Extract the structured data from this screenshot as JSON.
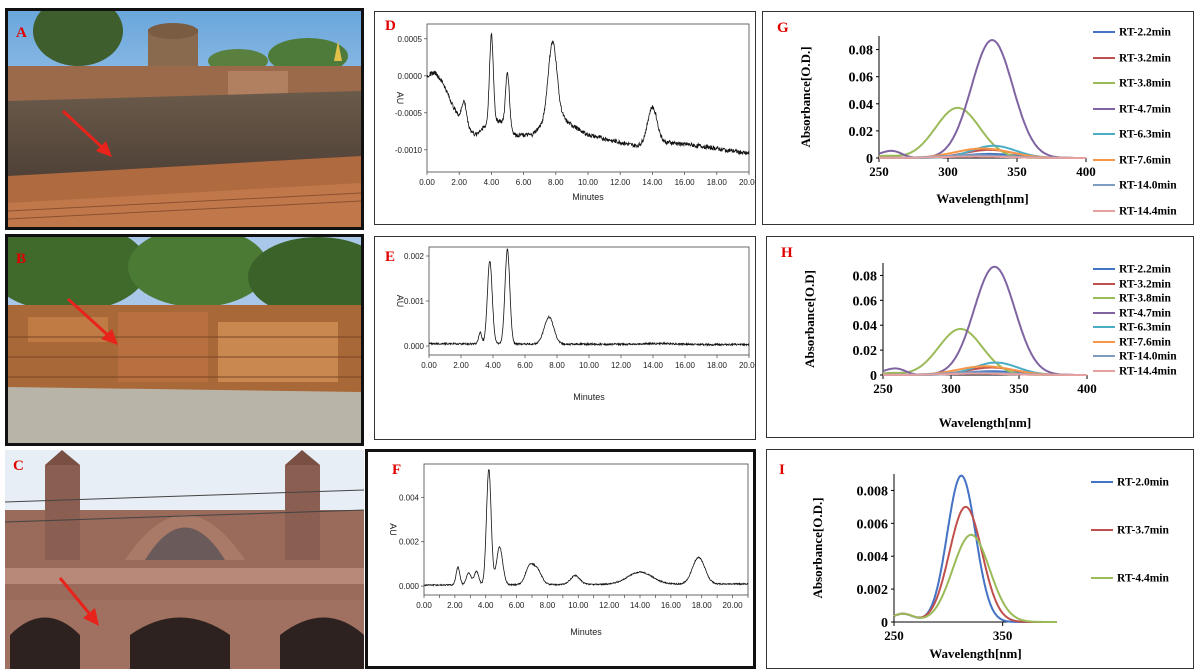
{
  "panels": {
    "A": {
      "label": "A"
    },
    "B": {
      "label": "B"
    },
    "C": {
      "label": "C"
    },
    "D": {
      "label": "D"
    },
    "E": {
      "label": "E"
    },
    "F": {
      "label": "F"
    },
    "G": {
      "label": "G"
    },
    "H": {
      "label": "H"
    },
    "I": {
      "label": "I"
    }
  },
  "colors": {
    "label_red": "#e00000",
    "arrow_red": "#e8231b"
  },
  "chart_data": [
    {
      "id": "D",
      "type": "line",
      "xlabel": "Minutes",
      "ylabel": "AU",
      "xlim": [
        0,
        20
      ],
      "ylim": [
        -0.0013,
        0.0007
      ],
      "xticks": [
        "0.00",
        "2.00",
        "4.00",
        "6.00",
        "8.00",
        "10.00",
        "12.00",
        "14.00",
        "16.00",
        "18.00",
        "20.00"
      ],
      "yticks": [
        "0.0005",
        "0.0000",
        "-0.0005",
        "-0.0010"
      ],
      "ytick_values": [
        0.0005,
        0.0,
        -0.0005,
        -0.001
      ],
      "baseline": [
        [
          0,
          0
        ],
        [
          0.5,
          5e-05
        ],
        [
          1,
          -0.0001
        ],
        [
          1.6,
          -0.0004
        ],
        [
          2.1,
          -0.0006
        ],
        [
          3,
          -0.0008
        ],
        [
          3.5,
          -0.0007
        ],
        [
          4.5,
          -0.0006
        ],
        [
          5.5,
          -0.0008
        ],
        [
          6.5,
          -0.0008
        ],
        [
          7,
          -0.0007
        ],
        [
          8.5,
          -0.0006
        ],
        [
          10,
          -0.0008
        ],
        [
          12,
          -0.0009
        ],
        [
          13,
          -0.00095
        ],
        [
          15,
          -0.0009
        ],
        [
          17,
          -0.00095
        ],
        [
          20,
          -0.00105
        ]
      ],
      "peaks": [
        [
          2.3,
          0.0003,
          0.15
        ],
        [
          4.0,
          0.0012,
          0.12
        ],
        [
          5.0,
          0.00075,
          0.12
        ],
        [
          7.8,
          0.0011,
          0.28
        ],
        [
          14.0,
          0.0005,
          0.3
        ]
      ],
      "noise": 3e-05
    },
    {
      "id": "E",
      "type": "line",
      "xlabel": "Minutes",
      "ylabel": "AU",
      "xlim": [
        0,
        20
      ],
      "ylim": [
        -0.0002,
        0.0022
      ],
      "xticks": [
        "0.00",
        "2.00",
        "4.00",
        "6.00",
        "8.00",
        "10.00",
        "12.00",
        "14.00",
        "16.00",
        "18.00",
        "20.00"
      ],
      "yticks": [
        "0.002",
        "0.001",
        "0.000"
      ],
      "ytick_values": [
        0.002,
        0.001,
        0.0
      ],
      "baseline": [
        [
          0,
          5e-05
        ],
        [
          20,
          3e-05
        ]
      ],
      "peaks": [
        [
          3.2,
          0.00025,
          0.1
        ],
        [
          3.8,
          0.00185,
          0.15
        ],
        [
          4.9,
          0.0021,
          0.15
        ],
        [
          7.5,
          0.0006,
          0.3
        ],
        [
          14.5,
          2e-05,
          1
        ]
      ],
      "noise": 2e-05
    },
    {
      "id": "F",
      "type": "line",
      "xlabel": "Minutes",
      "ylabel": "AU",
      "xlim": [
        0,
        21
      ],
      "ylim": [
        -0.0004,
        0.0055
      ],
      "xticks": [
        "0.00",
        "1.00",
        "2.00",
        "3.00",
        "4.00",
        "5.00",
        "6.00",
        "7.00",
        "8.00",
        "9.00",
        "10.00",
        "11.00",
        "12.00",
        "13.00",
        "14.00",
        "15.00",
        "16.00",
        "17.00",
        "18.00",
        "19.00",
        "20.00",
        "21.00"
      ],
      "xtick_labels_shown": [
        "0.00",
        "2.00",
        "4.00",
        "6.00",
        "8.00",
        "10.00",
        "12.00",
        "14.00",
        "16.00",
        "18.00",
        "20.00"
      ],
      "yticks": [
        "0.004",
        "0.002",
        "0.000"
      ],
      "ytick_values": [
        0.004,
        0.002,
        0.0
      ],
      "baseline": [
        [
          0,
          5e-05
        ],
        [
          21,
          0.0001
        ]
      ],
      "peaks": [
        [
          2.2,
          0.0008,
          0.12
        ],
        [
          2.9,
          0.00055,
          0.15
        ],
        [
          3.4,
          0.0006,
          0.15
        ],
        [
          4.2,
          0.0052,
          0.15
        ],
        [
          4.9,
          0.0017,
          0.2
        ],
        [
          6.8,
          0.0007,
          0.25
        ],
        [
          7.3,
          0.0007,
          0.3
        ],
        [
          9.8,
          0.0004,
          0.3
        ],
        [
          14.0,
          0.00055,
          0.8
        ],
        [
          17.8,
          0.0012,
          0.4
        ]
      ],
      "noise": 3e-05
    },
    {
      "id": "G",
      "type": "line",
      "xlabel": "Wavelength[nm]",
      "ylabel": "Absorbance[O.D.]",
      "xlim": [
        250,
        400
      ],
      "ylim": [
        0,
        0.09
      ],
      "xticks": [
        "250",
        "300",
        "350",
        "400"
      ],
      "yticks": [
        "0",
        "0.02",
        "0.04",
        "0.06",
        "0.08"
      ],
      "series": [
        {
          "name": "RT-2.2min",
          "color": "#4472c4",
          "peak": [
            330,
            0.003,
            20
          ]
        },
        {
          "name": "RT-3.2min",
          "color": "#c0504d",
          "peak": [
            330,
            0.006,
            18
          ]
        },
        {
          "name": "RT-3.8min",
          "color": "#9bbb59",
          "peak": [
            307,
            0.037,
            16
          ]
        },
        {
          "name": "RT-4.7min",
          "color": "#8064a2",
          "peak": [
            332,
            0.087,
            15
          ]
        },
        {
          "name": "RT-6.3min",
          "color": "#4bacc6",
          "peak": [
            333,
            0.009,
            16
          ]
        },
        {
          "name": "RT-7.6min",
          "color": "#f79646",
          "peak": [
            325,
            0.007,
            20
          ]
        },
        {
          "name": "RT-14.0min",
          "color": "#7f9bbf",
          "peak": [
            320,
            0.002,
            25
          ]
        },
        {
          "name": "RT-14.4min",
          "color": "#e6a0a0",
          "peak": [
            320,
            0.001,
            25
          ]
        }
      ]
    },
    {
      "id": "H",
      "type": "line",
      "xlabel": "Wavelength[nm]",
      "ylabel": "Absorbance[O.D]",
      "xlim": [
        250,
        400
      ],
      "ylim": [
        0,
        0.09
      ],
      "xticks": [
        "250",
        "300",
        "350",
        "400"
      ],
      "yticks": [
        "0",
        "0.02",
        "0.04",
        "0.06",
        "0.08"
      ],
      "series": [
        {
          "name": "RT-2.2min",
          "color": "#4472c4",
          "peak": [
            330,
            0.003,
            20
          ]
        },
        {
          "name": "RT-3.2min",
          "color": "#c0504d",
          "peak": [
            330,
            0.006,
            18
          ]
        },
        {
          "name": "RT-3.8min",
          "color": "#9bbb59",
          "peak": [
            307,
            0.037,
            16
          ]
        },
        {
          "name": "RT-4.7min",
          "color": "#8064a2",
          "peak": [
            332,
            0.087,
            15
          ]
        },
        {
          "name": "RT-6.3min",
          "color": "#4bacc6",
          "peak": [
            333,
            0.01,
            16
          ]
        },
        {
          "name": "RT-7.6min",
          "color": "#f79646",
          "peak": [
            325,
            0.007,
            20
          ]
        },
        {
          "name": "RT-14.0min",
          "color": "#7f9bbf",
          "peak": [
            320,
            0.002,
            25
          ]
        },
        {
          "name": "RT-14.4min",
          "color": "#e6a0a0",
          "peak": [
            320,
            0.001,
            25
          ]
        }
      ]
    },
    {
      "id": "I",
      "type": "line",
      "xlabel": "Wavelength[nm]",
      "ylabel": "Absorbance[O.D.]",
      "xlim": [
        250,
        400
      ],
      "ylim": [
        0,
        0.009
      ],
      "xticks": [
        "250",
        "350"
      ],
      "xtick_values": [
        250,
        350
      ],
      "yticks": [
        "0",
        "0.002",
        "0.004",
        "0.006",
        "0.008"
      ],
      "series": [
        {
          "name": "RT-2.0min",
          "color": "#4472c4",
          "peak": [
            312,
            0.0089,
            13
          ]
        },
        {
          "name": "RT-3.7min",
          "color": "#c0504d",
          "peak": [
            316,
            0.007,
            15
          ]
        },
        {
          "name": "RT-4.4min",
          "color": "#9bbb59",
          "peak": [
            321,
            0.0053,
            17
          ]
        }
      ]
    }
  ]
}
